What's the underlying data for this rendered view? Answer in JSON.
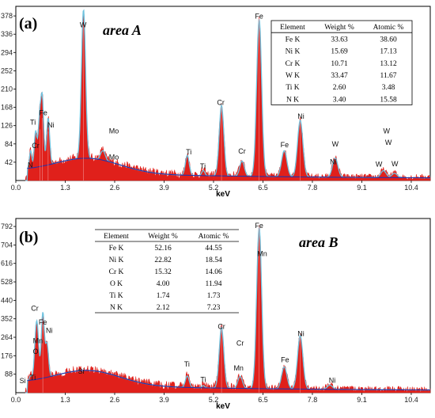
{
  "chart_data": [
    {
      "type": "line",
      "panel_label": "(a)",
      "area_label": "area A",
      "xlabel": "keV",
      "x_ticks": [
        "0.0",
        "1.3",
        "2.6",
        "3.9",
        "5.2",
        "6.5",
        "7.8",
        "9.1",
        "10.4"
      ],
      "y_ticks": [
        "42",
        "84",
        "126",
        "168",
        "210",
        "252",
        "294",
        "336",
        "378"
      ],
      "xlim": [
        0,
        10.9
      ],
      "ylim": [
        0,
        400
      ],
      "series_color": "#e0201b",
      "fit_color": "#6fc3df",
      "background_color": "#2233aa",
      "peaks": [
        {
          "x": 0.39,
          "y": 40,
          "w": 0.03
        },
        {
          "x": 0.52,
          "y": 82,
          "w": 0.035
        },
        {
          "x": 0.63,
          "y": 113,
          "w": 0.04
        },
        {
          "x": 0.7,
          "y": 138,
          "w": 0.035
        },
        {
          "x": 0.85,
          "y": 108,
          "w": 0.04
        },
        {
          "x": 1.78,
          "y": 342,
          "w": 0.055
        },
        {
          "x": 2.29,
          "y": 22,
          "w": 0.06
        },
        {
          "x": 4.51,
          "y": 46,
          "w": 0.05
        },
        {
          "x": 4.93,
          "y": 12,
          "w": 0.04
        },
        {
          "x": 5.41,
          "y": 162,
          "w": 0.06
        },
        {
          "x": 5.95,
          "y": 35,
          "w": 0.06
        },
        {
          "x": 6.4,
          "y": 362,
          "w": 0.065
        },
        {
          "x": 7.06,
          "y": 60,
          "w": 0.07
        },
        {
          "x": 7.48,
          "y": 130,
          "w": 0.07
        },
        {
          "x": 8.4,
          "y": 44,
          "w": 0.07
        },
        {
          "x": 9.67,
          "y": 16,
          "w": 0.07
        },
        {
          "x": 9.96,
          "y": 10,
          "w": 0.07
        }
      ],
      "peak_labels": [
        {
          "text": "N",
          "x": 0.38,
          "y": 30
        },
        {
          "text": "Cr",
          "x": 0.52,
          "y": 75
        },
        {
          "text": "Ti",
          "x": 0.45,
          "y": 128
        },
        {
          "text": "Fe",
          "x": 0.72,
          "y": 150
        },
        {
          "text": "Ni",
          "x": 0.92,
          "y": 122
        },
        {
          "text": "W",
          "x": 1.77,
          "y": 352
        },
        {
          "text": "Mo",
          "x": 2.58,
          "y": 108
        },
        {
          "text": "Mo",
          "x": 2.58,
          "y": 48
        },
        {
          "text": "Ti",
          "x": 4.55,
          "y": 60
        },
        {
          "text": "Ti",
          "x": 4.92,
          "y": 27
        },
        {
          "text": "Cr",
          "x": 5.39,
          "y": 174
        },
        {
          "text": "Cr",
          "x": 5.95,
          "y": 62
        },
        {
          "text": "Fe",
          "x": 6.4,
          "y": 372
        },
        {
          "text": "Fe",
          "x": 7.07,
          "y": 76
        },
        {
          "text": "Ni",
          "x": 7.5,
          "y": 142
        },
        {
          "text": "Ni",
          "x": 8.35,
          "y": 37
        },
        {
          "text": "W",
          "x": 8.4,
          "y": 78
        },
        {
          "text": "W",
          "x": 9.55,
          "y": 32
        },
        {
          "text": "W",
          "x": 9.97,
          "y": 33
        },
        {
          "text": "W",
          "x": 9.8,
          "y": 82
        },
        {
          "text": "W",
          "x": 9.75,
          "y": 108
        }
      ],
      "table": {
        "headers": [
          "Element",
          "Weight %",
          "Atomic %"
        ],
        "rows": [
          [
            "Fe K",
            "33.63",
            "38.60"
          ],
          [
            "Ni K",
            "15.69",
            "17.13"
          ],
          [
            "Cr K",
            "10.71",
            "13.12"
          ],
          [
            "W K",
            "33.47",
            "11.67"
          ],
          [
            "Ti K",
            "2.60",
            "3.48"
          ],
          [
            "N K",
            "3.40",
            "15.58"
          ]
        ]
      }
    },
    {
      "type": "line",
      "panel_label": "(b)",
      "area_label": "area B",
      "xlabel": "keV",
      "x_ticks": [
        "0.0",
        "1.3",
        "2.6",
        "3.9",
        "5.2",
        "6.5",
        "7.8",
        "9.1",
        "10.4"
      ],
      "y_ticks": [
        "88",
        "176",
        "264",
        "352",
        "440",
        "528",
        "616",
        "704",
        "792"
      ],
      "xlim": [
        0,
        10.9
      ],
      "ylim": [
        0,
        830
      ],
      "series_color": "#e0201b",
      "fit_color": "#6fc3df",
      "background_color": "#2233aa",
      "peaks": [
        {
          "x": 0.39,
          "y": 22,
          "w": 0.03
        },
        {
          "x": 0.52,
          "y": 148,
          "w": 0.04
        },
        {
          "x": 0.57,
          "y": 190,
          "w": 0.04
        },
        {
          "x": 0.71,
          "y": 312,
          "w": 0.04
        },
        {
          "x": 0.82,
          "y": 160,
          "w": 0.04
        },
        {
          "x": 4.51,
          "y": 55,
          "w": 0.05
        },
        {
          "x": 4.93,
          "y": 10,
          "w": 0.04
        },
        {
          "x": 5.41,
          "y": 290,
          "w": 0.06
        },
        {
          "x": 5.9,
          "y": 58,
          "w": 0.06
        },
        {
          "x": 6.4,
          "y": 770,
          "w": 0.065
        },
        {
          "x": 7.06,
          "y": 105,
          "w": 0.07
        },
        {
          "x": 7.48,
          "y": 255,
          "w": 0.07
        },
        {
          "x": 8.26,
          "y": 20,
          "w": 0.07
        }
      ],
      "peak_labels": [
        {
          "text": "Si",
          "x": 0.18,
          "y": 45
        },
        {
          "text": "Ti",
          "x": 0.45,
          "y": 60
        },
        {
          "text": "O",
          "x": 0.52,
          "y": 185
        },
        {
          "text": "Mn",
          "x": 0.58,
          "y": 235
        },
        {
          "text": "Cr",
          "x": 0.5,
          "y": 390
        },
        {
          "text": "Fe",
          "x": 0.71,
          "y": 325
        },
        {
          "text": "Ni",
          "x": 0.88,
          "y": 285
        },
        {
          "text": "Si",
          "x": 1.72,
          "y": 90
        },
        {
          "text": "Ti",
          "x": 4.5,
          "y": 125
        },
        {
          "text": "Ti",
          "x": 4.93,
          "y": 50
        },
        {
          "text": "Cr",
          "x": 5.41,
          "y": 303
        },
        {
          "text": "Cr",
          "x": 5.9,
          "y": 225
        },
        {
          "text": "Mn",
          "x": 5.86,
          "y": 105
        },
        {
          "text": "Fe",
          "x": 6.4,
          "y": 785
        },
        {
          "text": "Mn",
          "x": 6.48,
          "y": 650
        },
        {
          "text": "Fe",
          "x": 7.08,
          "y": 145
        },
        {
          "text": "Ni",
          "x": 7.5,
          "y": 270
        },
        {
          "text": "Ni",
          "x": 8.32,
          "y": 47
        }
      ],
      "table": {
        "headers": [
          "Element",
          "Weight %",
          "Atomic %"
        ],
        "rows": [
          [
            "Fe K",
            "52.16",
            "44.55"
          ],
          [
            "Ni K",
            "22.82",
            "18.54"
          ],
          [
            "Cr K",
            "15.32",
            "14.06"
          ],
          [
            "O K",
            "4.00",
            "11.94"
          ],
          [
            "Ti K",
            "1.74",
            "1.73"
          ],
          [
            "N K",
            "2.12",
            "7.23"
          ]
        ]
      }
    }
  ]
}
